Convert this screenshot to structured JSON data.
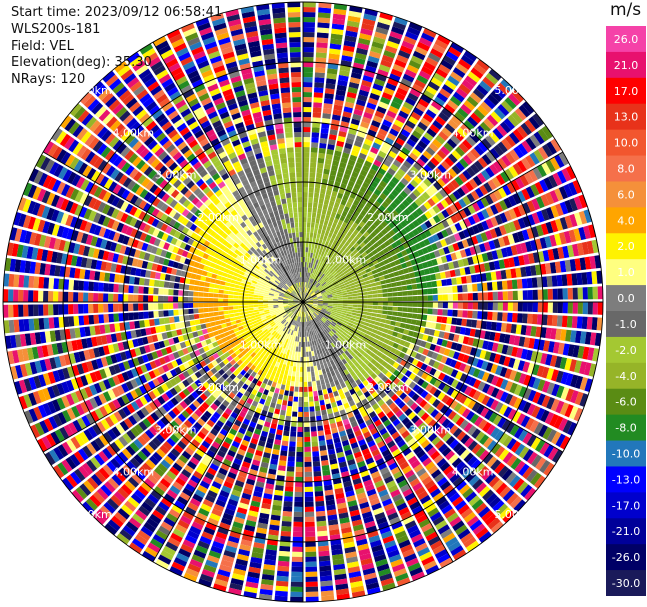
{
  "header": {
    "start_time": "Start time: 2023/09/12 06:58:41",
    "instrument": "WLS200s-181",
    "field": "Field: VEL",
    "elevation": "Elevation(deg): 35.30",
    "nrays": "NRays: 120"
  },
  "chart_data": {
    "type": "heatmap",
    "projection": "polar-ppi",
    "field": "VEL",
    "units": "m/s",
    "nrays": 120,
    "range_rings_km": [
      1.0,
      2.0,
      3.0,
      4.0,
      5.0
    ],
    "ring_labels": {
      "1.0": "1.00km",
      "2.0": "2.00km",
      "3.0": "3.00km",
      "4.0": "4.00km",
      "5.0": "5.00km"
    },
    "colorbar": {
      "tick_labels": [
        "26.0",
        "21.0",
        "17.0",
        "13.0",
        "10.0",
        "8.0",
        "6.0",
        "4.0",
        "2.0",
        "1.0",
        "0.0",
        "-1.0",
        "-2.0",
        "-4.0",
        "-6.0",
        "-8.0",
        "-10.0",
        "-13.0",
        "-17.0",
        "-21.0",
        "-26.0",
        "-30.0"
      ],
      "bins": [
        {
          "from": 26,
          "to": 30,
          "color": "#f542a8"
        },
        {
          "from": 21,
          "to": 26,
          "color": "#e8116e"
        },
        {
          "from": 17,
          "to": 21,
          "color": "#ff0000"
        },
        {
          "from": 13,
          "to": 17,
          "color": "#e8321a"
        },
        {
          "from": 10,
          "to": 13,
          "color": "#f2562e"
        },
        {
          "from": 8,
          "to": 10,
          "color": "#f5704a"
        },
        {
          "from": 6,
          "to": 8,
          "color": "#f5903a"
        },
        {
          "from": 4,
          "to": 6,
          "color": "#ffa500"
        },
        {
          "from": 2,
          "to": 4,
          "color": "#fff200"
        },
        {
          "from": 1,
          "to": 2,
          "color": "#ffff80"
        },
        {
          "from": 0,
          "to": 1,
          "color": "#7d7d7d"
        },
        {
          "from": -1,
          "to": 0,
          "color": "#686868"
        },
        {
          "from": -2,
          "to": -1,
          "color": "#a4c832"
        },
        {
          "from": -4,
          "to": -2,
          "color": "#96b428"
        },
        {
          "from": -6,
          "to": -4,
          "color": "#5a8c14"
        },
        {
          "from": -8,
          "to": -6,
          "color": "#228b22"
        },
        {
          "from": -10,
          "to": -8,
          "color": "#2277bb"
        },
        {
          "from": -13,
          "to": -10,
          "color": "#0000ff"
        },
        {
          "from": -17,
          "to": -13,
          "color": "#0000cd"
        },
        {
          "from": -21,
          "to": -17,
          "color": "#000099"
        },
        {
          "from": -26,
          "to": -21,
          "color": "#000066"
        },
        {
          "from": -30,
          "to": -26,
          "color": "#1a1a5a"
        }
      ]
    }
  }
}
